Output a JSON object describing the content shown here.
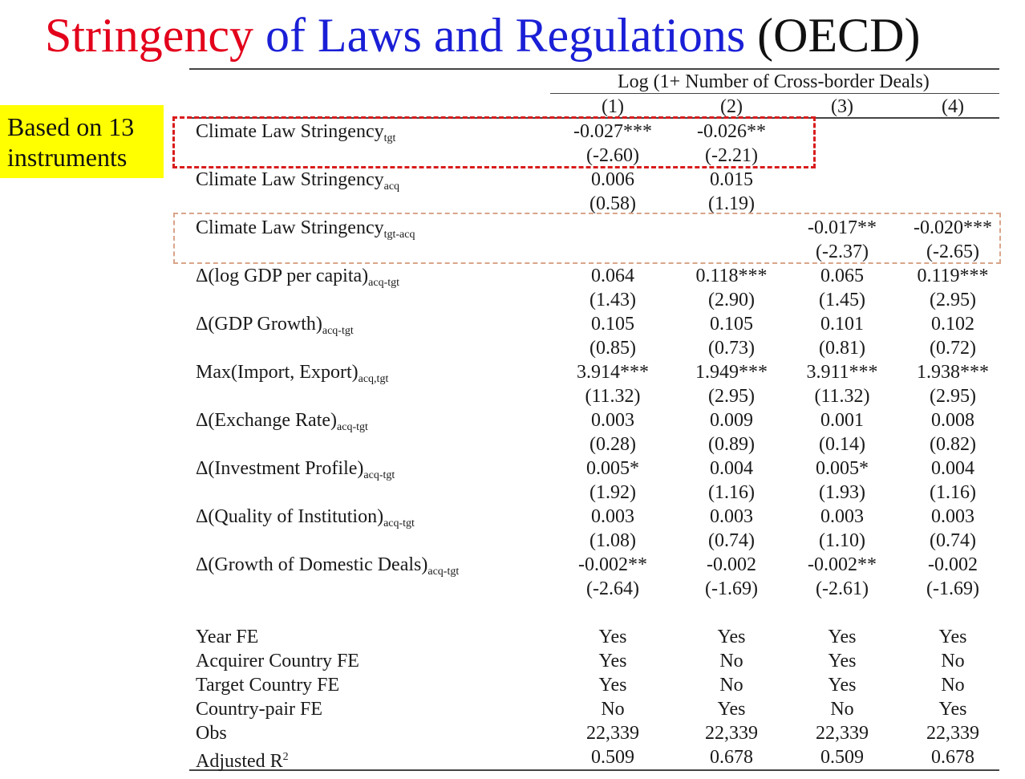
{
  "title": {
    "part1": "Stringency",
    "part2": "of Laws and Regulations",
    "part3": "(OECD)"
  },
  "note": {
    "line1": "Based on 13",
    "line2": "instruments"
  },
  "table": {
    "dep_var_header": "Log (1+ Number of Cross-border Deals)",
    "columns": [
      "(1)",
      "(2)",
      "(3)",
      "(4)"
    ],
    "rows": [
      {
        "label": "Climate Law Stringency",
        "sub": "tgt",
        "coef": [
          "-0.027***",
          "-0.026**",
          "",
          ""
        ],
        "t": [
          "(-2.60)",
          "(-2.21)",
          "",
          ""
        ]
      },
      {
        "label": "Climate Law Stringency",
        "sub": "acq",
        "coef": [
          "0.006",
          "0.015",
          "",
          ""
        ],
        "t": [
          "(0.58)",
          "(1.19)",
          "",
          ""
        ]
      },
      {
        "label": "Climate Law Stringency",
        "sub": "tgt-acq",
        "coef": [
          "",
          "",
          "-0.017**",
          "-0.020***"
        ],
        "t": [
          "",
          "",
          "(-2.37)",
          "(-2.65)"
        ]
      },
      {
        "label": "Δ(log GDP per capita)",
        "sub": "acq-tgt",
        "coef": [
          "0.064",
          "0.118***",
          "0.065",
          "0.119***"
        ],
        "t": [
          "(1.43)",
          "(2.90)",
          "(1.45)",
          "(2.95)"
        ]
      },
      {
        "label": "Δ(GDP Growth)",
        "sub": "acq-tgt",
        "coef": [
          "0.105",
          "0.105",
          "0.101",
          "0.102"
        ],
        "t": [
          "(0.85)",
          "(0.73)",
          "(0.81)",
          "(0.72)"
        ]
      },
      {
        "label": "Max(Import, Export)",
        "sub": "acq,tgt",
        "coef": [
          "3.914***",
          "1.949***",
          "3.911***",
          "1.938***"
        ],
        "t": [
          "(11.32)",
          "(2.95)",
          "(11.32)",
          "(2.95)"
        ]
      },
      {
        "label": "Δ(Exchange Rate)",
        "sub": "acq-tgt",
        "coef": [
          "0.003",
          "0.009",
          "0.001",
          "0.008"
        ],
        "t": [
          "(0.28)",
          "(0.89)",
          "(0.14)",
          "(0.82)"
        ]
      },
      {
        "label": "Δ(Investment Profile)",
        "sub": "acq-tgt",
        "coef": [
          "0.005*",
          "0.004",
          "0.005*",
          "0.004"
        ],
        "t": [
          "(1.92)",
          "(1.16)",
          "(1.93)",
          "(1.16)"
        ]
      },
      {
        "label": "Δ(Quality of Institution)",
        "sub": "acq-tgt",
        "coef": [
          "0.003",
          "0.003",
          "0.003",
          "0.003"
        ],
        "t": [
          "(1.08)",
          "(0.74)",
          "(1.10)",
          "(0.74)"
        ]
      },
      {
        "label": "Δ(Growth of Domestic Deals)",
        "sub": "acq-tgt",
        "coef": [
          "-0.002**",
          "-0.002",
          "-0.002**",
          "-0.002"
        ],
        "t": [
          "(-2.64)",
          "(-1.69)",
          "(-2.61)",
          "(-1.69)"
        ]
      }
    ],
    "footer": [
      {
        "label": "Year FE",
        "sup": "",
        "values": [
          "Yes",
          "Yes",
          "Yes",
          "Yes"
        ]
      },
      {
        "label": "Acquirer Country FE",
        "sup": "",
        "values": [
          "Yes",
          "No",
          "Yes",
          "No"
        ]
      },
      {
        "label": "Target Country FE",
        "sup": "",
        "values": [
          "Yes",
          "No",
          "Yes",
          "No"
        ]
      },
      {
        "label": "Country-pair FE",
        "sup": "",
        "values": [
          "No",
          "Yes",
          "No",
          "Yes"
        ]
      },
      {
        "label": "Obs",
        "sup": "",
        "values": [
          "22,339",
          "22,339",
          "22,339",
          "22,339"
        ]
      },
      {
        "label": "Adjusted R",
        "sup": "2",
        "values": [
          "0.509",
          "0.678",
          "0.509",
          "0.678"
        ]
      }
    ]
  },
  "colors": {
    "title_red": "#e3001b",
    "title_blue": "#1a1fd6",
    "note_bg": "#ffff00",
    "box_red": "#d91c1c",
    "box_tan": "#d9a58a"
  }
}
